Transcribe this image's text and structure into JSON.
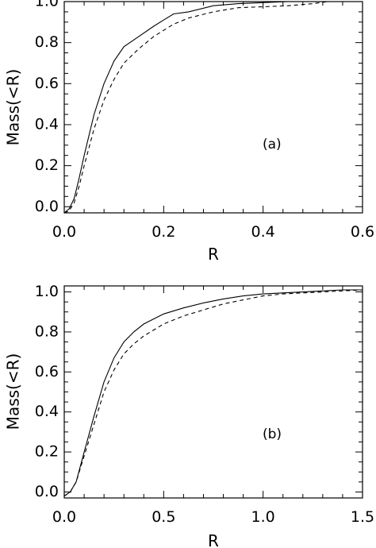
{
  "chart_data": [
    {
      "type": "line",
      "panel_label": "(a)",
      "xlabel": "R",
      "ylabel": "Mass(<R)",
      "xlim": [
        0,
        0.6
      ],
      "ylim": [
        -0.03,
        1.0
      ],
      "xticks": [
        0.0,
        0.2,
        0.4,
        0.6
      ],
      "xtick_labels": [
        "0.0",
        "0.2",
        "0.4",
        "0.6"
      ],
      "yticks": [
        0.0,
        0.2,
        0.4,
        0.6,
        0.8,
        1.0
      ],
      "ytick_labels": [
        "0.0",
        "0.2",
        "0.4",
        "0.6",
        "0.8",
        "1.0"
      ],
      "grid": false,
      "series": [
        {
          "style": "solid",
          "x": [
            0.0,
            0.01,
            0.02,
            0.03,
            0.04,
            0.06,
            0.08,
            0.1,
            0.12,
            0.15,
            0.18,
            0.2,
            0.22,
            0.25,
            0.3,
            0.35,
            0.4,
            0.45,
            0.5,
            0.53
          ],
          "y": [
            -0.03,
            -0.01,
            0.04,
            0.14,
            0.25,
            0.45,
            0.6,
            0.71,
            0.78,
            0.83,
            0.88,
            0.91,
            0.94,
            0.95,
            0.98,
            0.99,
            0.995,
            1.0,
            1.0,
            1.0
          ]
        },
        {
          "style": "dashed",
          "x": [
            0.0,
            0.01,
            0.02,
            0.03,
            0.04,
            0.06,
            0.08,
            0.1,
            0.12,
            0.15,
            0.18,
            0.2,
            0.22,
            0.25,
            0.3,
            0.35,
            0.4,
            0.45,
            0.5,
            0.53
          ],
          "y": [
            -0.03,
            -0.02,
            0.02,
            0.1,
            0.2,
            0.38,
            0.52,
            0.62,
            0.7,
            0.77,
            0.83,
            0.86,
            0.89,
            0.92,
            0.95,
            0.97,
            0.975,
            0.98,
            0.99,
            1.0
          ]
        }
      ]
    },
    {
      "type": "line",
      "panel_label": "(b)",
      "xlabel": "R",
      "ylabel": "Mass(<R)",
      "xlim": [
        0,
        1.5
      ],
      "ylim": [
        -0.03,
        1.03
      ],
      "xticks": [
        0.0,
        0.5,
        1.0,
        1.5
      ],
      "xtick_labels": [
        "0.0",
        "0.5",
        "1.0",
        "1.5"
      ],
      "yticks": [
        0.0,
        0.2,
        0.4,
        0.6,
        0.8,
        1.0
      ],
      "ytick_labels": [
        "0.0",
        "0.2",
        "0.4",
        "0.6",
        "0.8",
        "1.0"
      ],
      "grid": false,
      "series": [
        {
          "style": "solid",
          "x": [
            0.0,
            0.03,
            0.06,
            0.1,
            0.15,
            0.2,
            0.25,
            0.3,
            0.35,
            0.4,
            0.5,
            0.6,
            0.7,
            0.8,
            0.9,
            1.0,
            1.1,
            1.2,
            1.3,
            1.4,
            1.5
          ],
          "y": [
            -0.02,
            0.0,
            0.05,
            0.2,
            0.38,
            0.55,
            0.67,
            0.75,
            0.8,
            0.84,
            0.89,
            0.92,
            0.945,
            0.965,
            0.98,
            0.99,
            0.995,
            1.0,
            1.005,
            1.01,
            1.01
          ]
        },
        {
          "style": "dashed",
          "x": [
            0.0,
            0.03,
            0.06,
            0.1,
            0.15,
            0.2,
            0.25,
            0.3,
            0.35,
            0.4,
            0.5,
            0.6,
            0.7,
            0.8,
            0.9,
            1.0,
            1.1,
            1.2,
            1.3,
            1.4,
            1.5
          ],
          "y": [
            -0.02,
            0.0,
            0.05,
            0.18,
            0.34,
            0.5,
            0.61,
            0.69,
            0.74,
            0.78,
            0.84,
            0.88,
            0.91,
            0.94,
            0.96,
            0.98,
            0.99,
            0.995,
            1.0,
            1.005,
            1.01
          ]
        }
      ]
    }
  ]
}
